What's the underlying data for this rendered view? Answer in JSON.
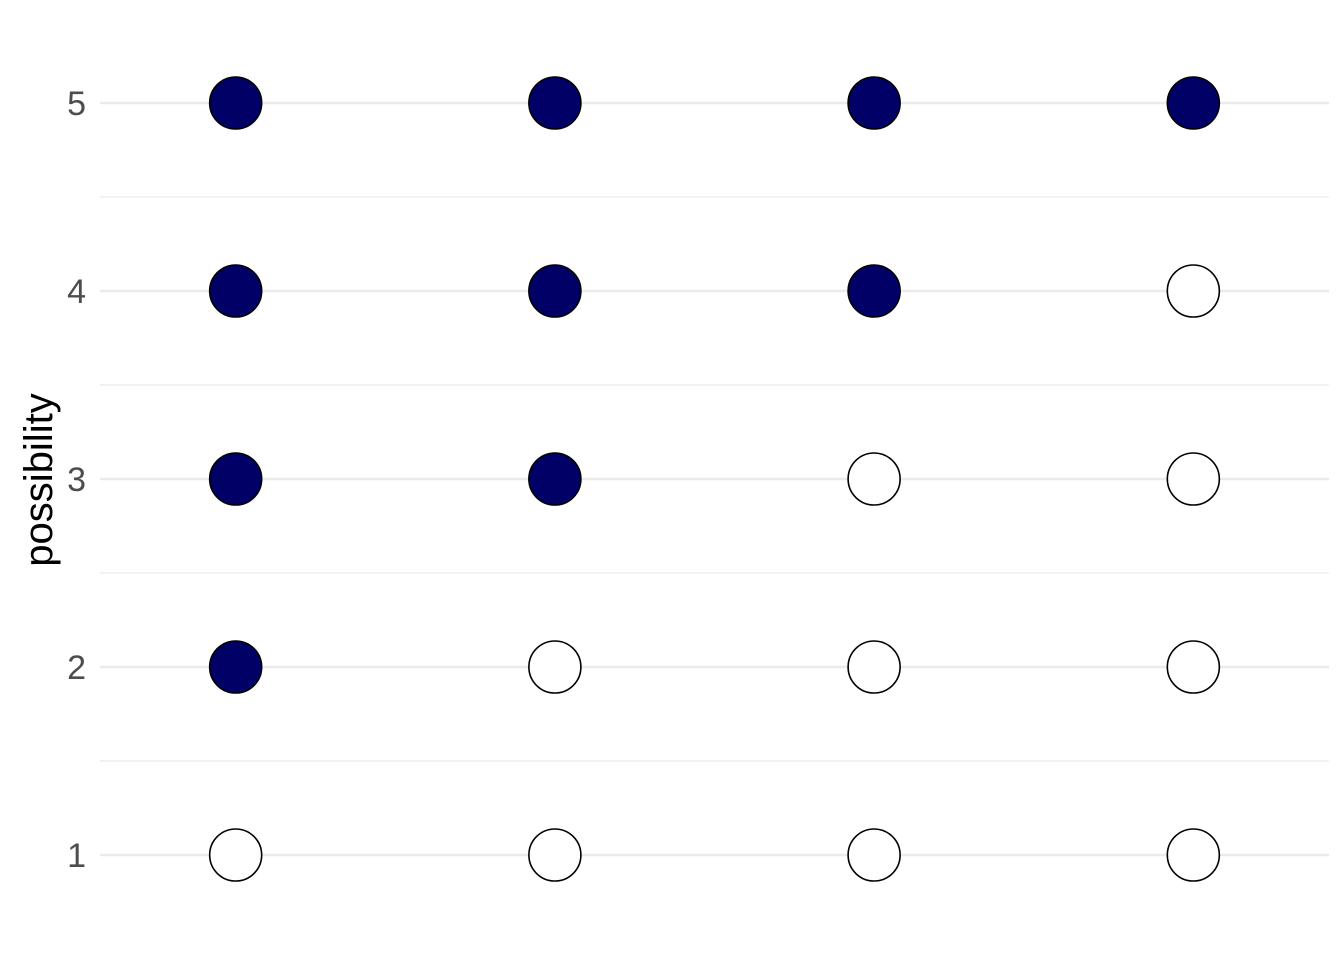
{
  "chart_data": {
    "type": "scatter",
    "title": "",
    "xlabel": "",
    "ylabel": "possibility",
    "x": [
      1,
      2,
      3,
      4
    ],
    "y_ticks": [
      "1",
      "2",
      "3",
      "4",
      "5"
    ],
    "ylim": [
      0.75,
      5.25
    ],
    "grid": true,
    "legend": "none",
    "points": [
      {
        "x": 1,
        "y": 1,
        "filled": false
      },
      {
        "x": 1,
        "y": 2,
        "filled": true
      },
      {
        "x": 1,
        "y": 3,
        "filled": true
      },
      {
        "x": 1,
        "y": 4,
        "filled": true
      },
      {
        "x": 1,
        "y": 5,
        "filled": true
      },
      {
        "x": 2,
        "y": 1,
        "filled": false
      },
      {
        "x": 2,
        "y": 2,
        "filled": false
      },
      {
        "x": 2,
        "y": 3,
        "filled": true
      },
      {
        "x": 2,
        "y": 4,
        "filled": true
      },
      {
        "x": 2,
        "y": 5,
        "filled": true
      },
      {
        "x": 3,
        "y": 1,
        "filled": false
      },
      {
        "x": 3,
        "y": 2,
        "filled": false
      },
      {
        "x": 3,
        "y": 3,
        "filled": false
      },
      {
        "x": 3,
        "y": 4,
        "filled": true
      },
      {
        "x": 3,
        "y": 5,
        "filled": true
      },
      {
        "x": 4,
        "y": 1,
        "filled": false
      },
      {
        "x": 4,
        "y": 2,
        "filled": false
      },
      {
        "x": 4,
        "y": 3,
        "filled": false
      },
      {
        "x": 4,
        "y": 4,
        "filled": false
      },
      {
        "x": 4,
        "y": 5,
        "filled": true
      }
    ],
    "colors": {
      "filled": "#000066",
      "empty": "#ffffff",
      "stroke": "#000000"
    }
  }
}
